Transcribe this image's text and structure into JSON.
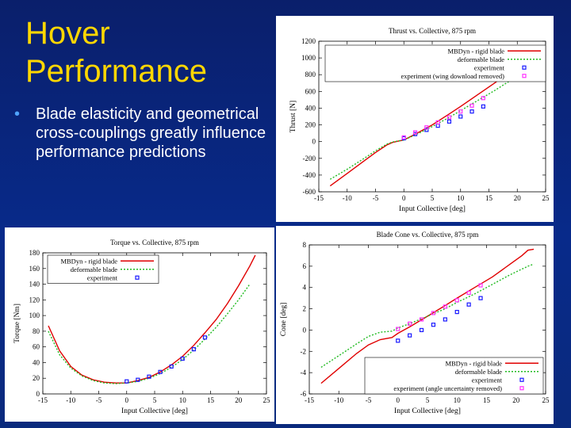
{
  "slide": {
    "title_line1": "Hover",
    "title_line2": "Performance",
    "bullet": "Blade elasticity and geometrical cross-couplings greatly influence performance predictions"
  },
  "colors": {
    "rigid": "#e00000",
    "deformable": "#22bb22",
    "experiment": "#1a1aff",
    "experiment2": "#ff33ff"
  },
  "chart_data": [
    {
      "type": "line",
      "title": "Thrust vs. Collective, 875 rpm",
      "xlabel": "Input Collective [deg]",
      "ylabel": "Thrust [N]",
      "xlim": [
        -15,
        25
      ],
      "ylim": [
        -600,
        1200
      ],
      "xticks": [
        -15,
        -10,
        -5,
        0,
        5,
        10,
        15,
        20,
        25
      ],
      "yticks": [
        -600,
        -400,
        -200,
        0,
        200,
        400,
        600,
        800,
        1000,
        1200
      ],
      "legend_position": "top-right",
      "series": [
        {
          "name": "MBDyn - rigid blade",
          "kind": "line",
          "color": "#e00000",
          "x": [
            -13,
            -10,
            -7,
            -5,
            -3,
            -2,
            -1,
            0,
            2,
            5,
            8,
            10,
            13,
            16,
            19,
            21,
            22,
            23
          ],
          "y": [
            -530,
            -380,
            -230,
            -130,
            -40,
            -10,
            5,
            20,
            90,
            200,
            330,
            420,
            560,
            700,
            850,
            950,
            1000,
            1000
          ]
        },
        {
          "name": "deformable blade",
          "kind": "dotted",
          "color": "#22bb22",
          "x": [
            -13,
            -10,
            -7,
            -5,
            -3,
            -2,
            -1,
            0,
            2,
            5,
            8,
            10,
            13,
            16,
            19,
            21,
            23
          ],
          "y": [
            -450,
            -330,
            -200,
            -110,
            -30,
            -5,
            8,
            20,
            80,
            180,
            290,
            370,
            490,
            610,
            740,
            820,
            890
          ]
        },
        {
          "name": "experiment",
          "kind": "points",
          "color": "#1a1aff",
          "x": [
            0,
            2,
            4,
            6,
            8,
            10,
            12,
            14
          ],
          "y": [
            40,
            90,
            140,
            190,
            240,
            300,
            360,
            420
          ]
        },
        {
          "name": "experiment (wing download removed)",
          "kind": "points",
          "color": "#ff33ff",
          "x": [
            0,
            2,
            4,
            6,
            8,
            10,
            12,
            14
          ],
          "y": [
            50,
            110,
            170,
            230,
            290,
            360,
            430,
            520
          ]
        }
      ]
    },
    {
      "type": "line",
      "title": "Torque vs. Collective, 875 rpm",
      "xlabel": "Input Collective [deg]",
      "ylabel": "Torque [Nm]",
      "xlim": [
        -15,
        25
      ],
      "ylim": [
        0,
        180
      ],
      "xticks": [
        -15,
        -10,
        -5,
        0,
        5,
        10,
        15,
        20,
        25
      ],
      "yticks": [
        0,
        20,
        40,
        60,
        80,
        100,
        120,
        140,
        160,
        180
      ],
      "legend_position": "top-left",
      "series": [
        {
          "name": "MBDyn - rigid blade",
          "kind": "line",
          "color": "#e00000",
          "x": [
            -14,
            -12,
            -10,
            -8,
            -6,
            -4,
            -2,
            0,
            2,
            4,
            6,
            8,
            10,
            12,
            14,
            16,
            18,
            20,
            22,
            23
          ],
          "y": [
            87,
            55,
            35,
            24,
            18,
            15,
            14,
            14,
            17,
            21,
            28,
            37,
            48,
            62,
            78,
            95,
            115,
            138,
            163,
            177
          ]
        },
        {
          "name": "deformable blade",
          "kind": "dotted",
          "color": "#22bb22",
          "x": [
            -14,
            -12,
            -10,
            -8,
            -6,
            -4,
            -2,
            0,
            2,
            4,
            6,
            8,
            10,
            12,
            14,
            16,
            18,
            20,
            22
          ],
          "y": [
            80,
            50,
            33,
            23,
            17,
            14,
            13,
            14,
            16,
            20,
            26,
            34,
            44,
            56,
            70,
            85,
            102,
            120,
            140
          ]
        },
        {
          "name": "experiment",
          "kind": "points",
          "color": "#1a1aff",
          "x": [
            0,
            2,
            4,
            6,
            8,
            10,
            12,
            14
          ],
          "y": [
            16,
            18,
            22,
            28,
            35,
            45,
            57,
            72
          ]
        }
      ]
    },
    {
      "type": "line",
      "title": "Blade Cone vs. Collective, 875 rpm",
      "xlabel": "Input Collective [deg]",
      "ylabel": "Cone [deg]",
      "xlim": [
        -15,
        25
      ],
      "ylim": [
        -6,
        8
      ],
      "xticks": [
        -15,
        -10,
        -5,
        0,
        5,
        10,
        15,
        20,
        25
      ],
      "yticks": [
        -6,
        -4,
        -2,
        0,
        2,
        4,
        6,
        8
      ],
      "legend_position": "bottom-right",
      "series": [
        {
          "name": "MBDyn - rigid blade",
          "kind": "line",
          "color": "#e00000",
          "x": [
            -13,
            -10,
            -7,
            -5,
            -3,
            -1,
            0,
            2,
            5,
            8,
            10,
            13,
            16,
            19,
            21,
            22,
            23
          ],
          "y": [
            -5.0,
            -3.6,
            -2.2,
            -1.4,
            -0.9,
            -0.7,
            -0.3,
            0.3,
            1.3,
            2.3,
            3.0,
            4.0,
            5.0,
            6.2,
            7.0,
            7.5,
            7.6
          ]
        },
        {
          "name": "deformable blade",
          "kind": "dotted",
          "color": "#22bb22",
          "x": [
            -13,
            -10,
            -7,
            -5,
            -3,
            -1,
            0,
            2,
            5,
            8,
            10,
            13,
            16,
            19,
            22,
            23
          ],
          "y": [
            -3.5,
            -2.4,
            -1.3,
            -0.6,
            -0.2,
            -0.1,
            0.2,
            0.6,
            1.3,
            2.0,
            2.6,
            3.4,
            4.3,
            5.2,
            6.0,
            6.2
          ]
        },
        {
          "name": "experiment",
          "kind": "points",
          "color": "#1a1aff",
          "x": [
            0,
            2,
            4,
            6,
            8,
            10,
            12,
            14
          ],
          "y": [
            -1.0,
            -0.5,
            0.0,
            0.5,
            1.0,
            1.7,
            2.4,
            3.0
          ]
        },
        {
          "name": "experiment (angle uncertainty removed)",
          "kind": "points",
          "color": "#ff33ff",
          "x": [
            0,
            2,
            4,
            6,
            8,
            10,
            12,
            14
          ],
          "y": [
            0.1,
            0.6,
            1.0,
            1.6,
            2.2,
            2.8,
            3.5,
            4.2
          ]
        }
      ]
    }
  ]
}
